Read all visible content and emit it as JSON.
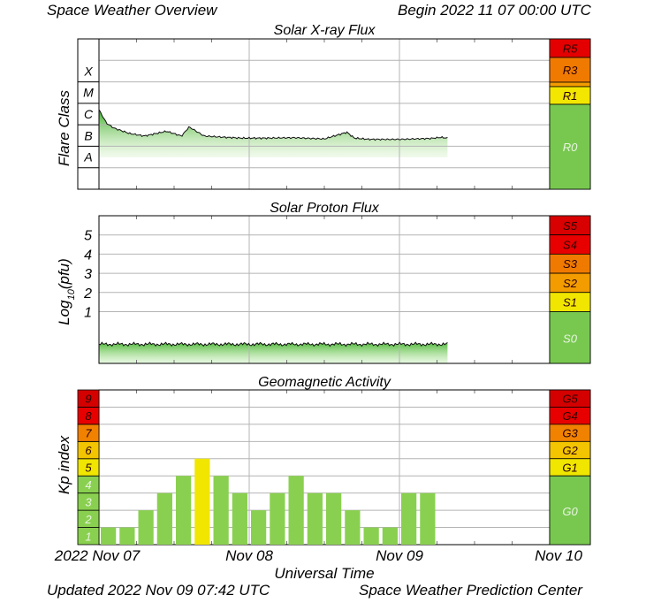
{
  "header": {
    "title": "Space Weather Overview",
    "begin": "Begin 2022 11 07 00:00 UTC"
  },
  "footer": {
    "updated": "Updated 2022 Nov 09 07:42 UTC",
    "center": "Space Weather Prediction Center"
  },
  "xaxis": {
    "label": "Universal Time",
    "ticks": [
      "2022 Nov 07",
      "Nov 08",
      "Nov 09",
      "Nov 10"
    ]
  },
  "colors": {
    "red": "#e80000",
    "dark_orange": "#f07000",
    "orange": "#f39b00",
    "yellow": "#f0e600",
    "green": "#78c850",
    "kp_green": "#8ad050"
  },
  "chart_data": [
    {
      "type": "area",
      "title": "Solar X-ray Flux",
      "ylabel": "Flare Class",
      "y_scale": "log",
      "ylim": [
        1e-09,
        0.01
      ],
      "class_labels": [
        "X",
        "M",
        "C",
        "B",
        "A"
      ],
      "scale_labels": [
        "R5",
        "R3",
        "R1",
        "R0"
      ],
      "x_days_since_start": [
        0.0,
        0.05,
        0.1,
        0.2,
        0.3,
        0.45,
        0.55,
        0.6,
        0.7,
        0.85,
        0.95,
        1.0,
        1.1,
        1.3,
        1.5,
        1.65,
        1.7,
        1.8,
        2.0,
        2.2,
        2.28,
        2.32
      ],
      "values": [
        5e-06,
        1.2e-06,
        7e-07,
        4e-07,
        3e-07,
        5e-07,
        3e-07,
        8e-07,
        3e-07,
        2.6e-07,
        2.4e-07,
        2.4e-07,
        2.4e-07,
        2.5e-07,
        2.2e-07,
        4.5e-07,
        2.4e-07,
        2.1e-07,
        2.1e-07,
        2.3e-07,
        2.6e-07,
        2.4e-07
      ]
    },
    {
      "type": "area",
      "title": "Solar Proton Flux",
      "ylabel": "Log10(pfu)",
      "ylim": [
        -1.7,
        6
      ],
      "y_ticks": [
        "1",
        "2",
        "3",
        "4",
        "5"
      ],
      "scale_labels": [
        "S5",
        "S4",
        "S3",
        "S2",
        "S1",
        "S0"
      ],
      "x_days_since_start": [
        0.0,
        2.32
      ],
      "values": [
        -0.7,
        -0.7
      ]
    },
    {
      "type": "bar",
      "title": "Geomagnetic Activity",
      "ylabel": "Kp index",
      "ylim": [
        0,
        9
      ],
      "kp_labels": [
        "1",
        "2",
        "3",
        "4",
        "5",
        "6",
        "7",
        "8",
        "9"
      ],
      "scale_labels": [
        "G5",
        "G4",
        "G3",
        "G2",
        "G1",
        "G0"
      ],
      "bar_interval_hours": 3,
      "values": [
        1,
        1,
        2,
        3,
        4,
        5,
        4,
        3,
        2,
        3,
        4,
        3,
        3,
        2,
        1,
        1,
        3,
        3
      ]
    }
  ]
}
